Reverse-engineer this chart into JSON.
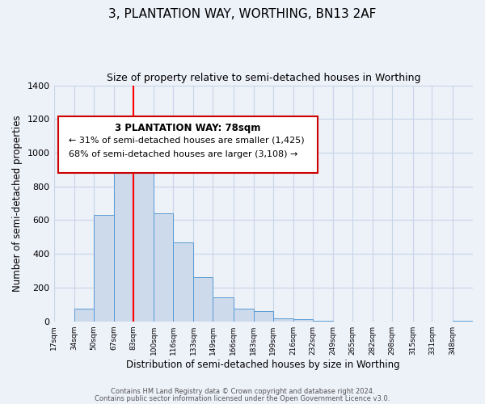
{
  "title": "3, PLANTATION WAY, WORTHING, BN13 2AF",
  "subtitle": "Size of property relative to semi-detached houses in Worthing",
  "xlabel": "Distribution of semi-detached houses by size in Worthing",
  "ylabel": "Number of semi-detached properties",
  "annotation_line1": "3 PLANTATION WAY: 78sqm",
  "annotation_line2": "← 31% of semi-detached houses are smaller (1,425)",
  "annotation_line3": "68% of semi-detached houses are larger (3,108) →",
  "footer_line1": "Contains HM Land Registry data © Crown copyright and database right 2024.",
  "footer_line2": "Contains public sector information licensed under the Open Government Licence v3.0.",
  "bar_edges": [
    17,
    34,
    50,
    67,
    83,
    100,
    116,
    133,
    149,
    166,
    183,
    199,
    216,
    232,
    249,
    265,
    282,
    298,
    315,
    331,
    348,
    365
  ],
  "bar_heights": [
    0,
    75,
    630,
    1100,
    1120,
    640,
    470,
    260,
    140,
    75,
    60,
    20,
    15,
    5,
    0,
    0,
    0,
    0,
    0,
    0,
    5
  ],
  "bar_color": "#ccdaeb",
  "bar_edge_color": "#5b9bd5",
  "red_line_x": 83,
  "ylim": [
    0,
    1400
  ],
  "yticks": [
    0,
    200,
    400,
    600,
    800,
    1000,
    1200,
    1400
  ],
  "xtick_labels": [
    "17sqm",
    "34sqm",
    "50sqm",
    "67sqm",
    "83sqm",
    "100sqm",
    "116sqm",
    "133sqm",
    "149sqm",
    "166sqm",
    "183sqm",
    "199sqm",
    "216sqm",
    "232sqm",
    "249sqm",
    "265sqm",
    "282sqm",
    "298sqm",
    "315sqm",
    "331sqm",
    "348sqm"
  ],
  "grid_color": "#c8d4e8",
  "bg_color": "#edf1f8",
  "title_fontsize": 11,
  "subtitle_fontsize": 9,
  "annotation_box_color": "#ffffff",
  "annotation_box_edge_color": "#cc0000"
}
